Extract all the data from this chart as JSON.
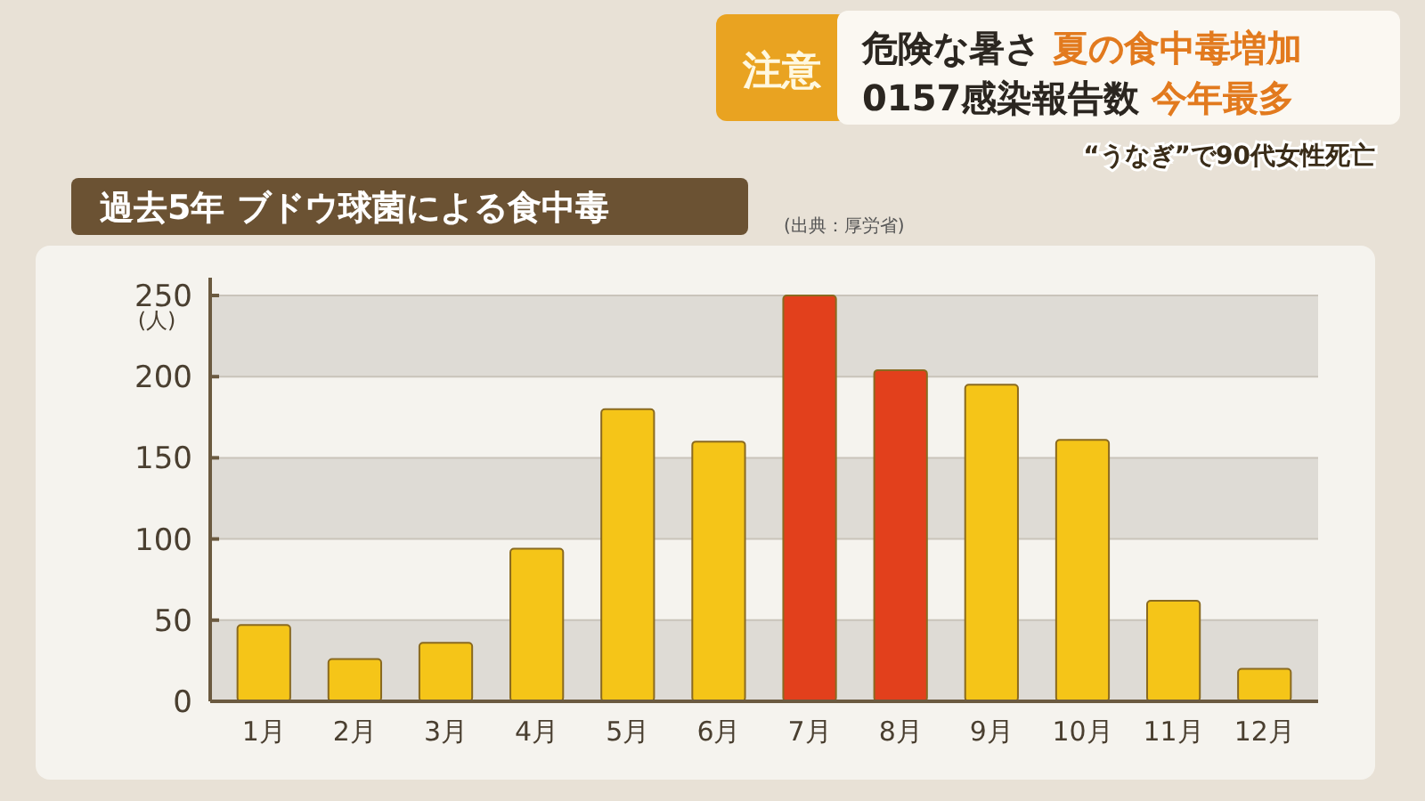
{
  "chart_data": {
    "type": "bar",
    "title": "過去5年 ブドウ球菌による食中毒",
    "ylabel": "(人)",
    "annotations": [
      "(出典：厚労省)",
      "注意",
      "危険な暑さ 夏の食中毒増加",
      "0157感染報告数 今年最多",
      "“うなぎ”で90代女性死亡"
    ],
    "categories": [
      "1月",
      "2月",
      "3月",
      "4月",
      "5月",
      "6月",
      "7月",
      "8月",
      "9月",
      "10月",
      "11月",
      "12月"
    ],
    "values": [
      47,
      26,
      36,
      94,
      180,
      160,
      250,
      204,
      195,
      161,
      62,
      20
    ],
    "colors": [
      "#f5c518",
      "#f5c518",
      "#f5c518",
      "#f5c518",
      "#f5c518",
      "#f5c518",
      "#e2401c",
      "#e2401c",
      "#f5c518",
      "#f5c518",
      "#f5c518",
      "#f5c518"
    ],
    "ylim": [
      0,
      250
    ],
    "yticks": [
      0,
      50,
      100,
      150,
      200,
      250
    ],
    "grid": "y"
  }
}
